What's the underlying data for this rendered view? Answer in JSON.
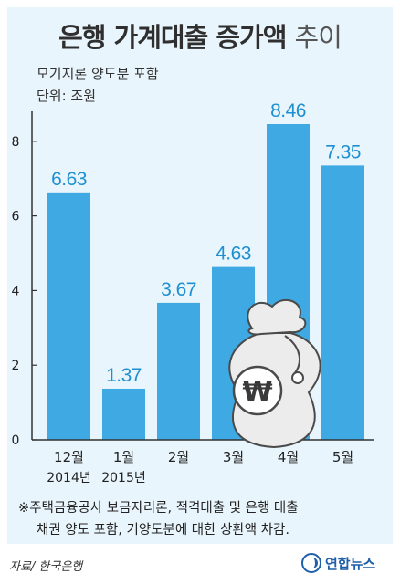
{
  "title_main": "은행 가계대출 증가액",
  "title_trend": "추이",
  "subtitle": "모기지론 양도분 포함",
  "unit": "단위: 조원",
  "footnote_line1": "※주택금융공사 보금자리론, 적격대출 및 은행 대출",
  "footnote_line2": "채권 양도 포함, 기양도분에 대한 상환액 차감.",
  "source": "자료/ 한국은행",
  "logo_text": "연합뉴스",
  "icon": "money-bag-won-icon",
  "colors": {
    "bar": "#3ea9e2",
    "label": "#1e8fd0",
    "background": "#e9f5fc"
  },
  "chart_data": {
    "type": "bar",
    "categories": [
      "12월",
      "1월",
      "2월",
      "3월",
      "4월",
      "5월"
    ],
    "year_labels": [
      "2014년",
      "2015년"
    ],
    "values": [
      6.63,
      1.37,
      3.67,
      4.63,
      8.46,
      7.35
    ],
    "value_labels": [
      "6.63",
      "1.37",
      "3.67",
      "4.63",
      "8.46",
      "7.35"
    ],
    "yticks": [
      0,
      2,
      4,
      6,
      8
    ],
    "ylim": [
      0,
      8.9
    ],
    "grid": false
  }
}
